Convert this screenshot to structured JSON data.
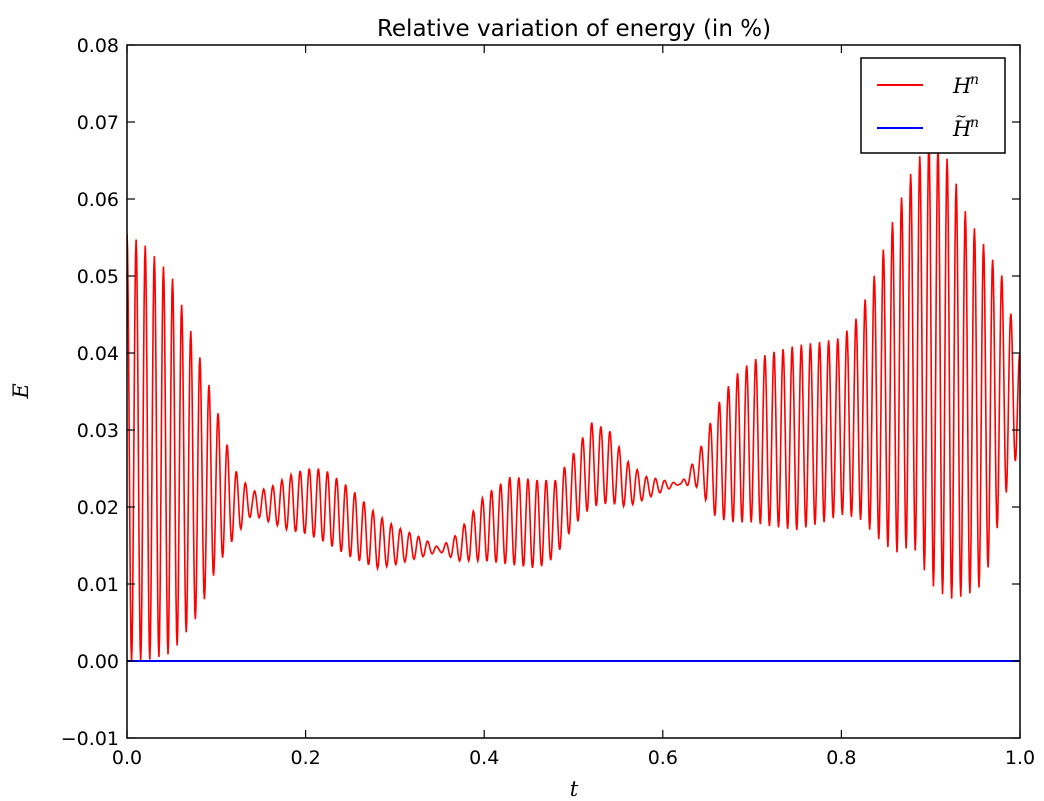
{
  "chart_data": {
    "type": "line",
    "title": "Relative variation of energy (in %)",
    "xlabel": "t",
    "ylabel": "E",
    "xlim": [
      0.0,
      1.0
    ],
    "ylim": [
      -0.01,
      0.08
    ],
    "grid": false,
    "legend_position": "top-right",
    "x_ticks": [
      "0.0",
      "0.2",
      "0.4",
      "0.6",
      "0.8",
      "1.0"
    ],
    "y_ticks": [
      "−0.01",
      "0.00",
      "0.01",
      "0.02",
      "0.03",
      "0.04",
      "0.05",
      "0.06",
      "0.07",
      "0.08"
    ],
    "oscillation_cycles": 98,
    "series": [
      {
        "name_base": "H",
        "name_sup": "n",
        "color": "#ff0000",
        "style": "oscillating",
        "envelope": {
          "x": [
            0.0,
            0.02,
            0.05,
            0.08,
            0.1,
            0.12,
            0.14,
            0.16,
            0.18,
            0.2,
            0.22,
            0.25,
            0.28,
            0.3,
            0.33,
            0.35,
            0.37,
            0.4,
            0.43,
            0.46,
            0.48,
            0.5,
            0.52,
            0.54,
            0.56,
            0.58,
            0.6,
            0.62,
            0.64,
            0.66,
            0.68,
            0.7,
            0.72,
            0.75,
            0.78,
            0.8,
            0.82,
            0.84,
            0.86,
            0.88,
            0.9,
            0.92,
            0.94,
            0.96,
            0.98,
            1.0
          ],
          "upper": [
            0.0555,
            0.054,
            0.05,
            0.04,
            0.033,
            0.025,
            0.022,
            0.0225,
            0.024,
            0.025,
            0.025,
            0.0225,
            0.019,
            0.0175,
            0.016,
            0.0147,
            0.0165,
            0.0215,
            0.024,
            0.0235,
            0.0235,
            0.027,
            0.031,
            0.03,
            0.026,
            0.024,
            0.0235,
            0.023,
            0.027,
            0.033,
            0.037,
            0.039,
            0.04,
            0.041,
            0.0415,
            0.042,
            0.045,
            0.051,
            0.058,
            0.064,
            0.068,
            0.065,
            0.058,
            0.054,
            0.05,
            0.04
          ],
          "lower": [
            0.0,
            0.0,
            0.001,
            0.006,
            0.012,
            0.016,
            0.019,
            0.018,
            0.017,
            0.0165,
            0.0155,
            0.0135,
            0.012,
            0.0125,
            0.0135,
            0.0142,
            0.013,
            0.013,
            0.0125,
            0.012,
            0.0135,
            0.0175,
            0.02,
            0.0205,
            0.02,
            0.021,
            0.022,
            0.023,
            0.0225,
            0.0185,
            0.018,
            0.018,
            0.0175,
            0.017,
            0.018,
            0.019,
            0.0185,
            0.016,
            0.014,
            0.015,
            0.01,
            0.008,
            0.0085,
            0.01,
            0.02,
            0.028
          ]
        }
      },
      {
        "name_base": "H",
        "name_sup": "n",
        "name_tilde": "~",
        "color": "#0000ff",
        "style": "line",
        "x": [
          0.0,
          1.0
        ],
        "y": [
          0.0,
          0.0
        ]
      }
    ]
  }
}
